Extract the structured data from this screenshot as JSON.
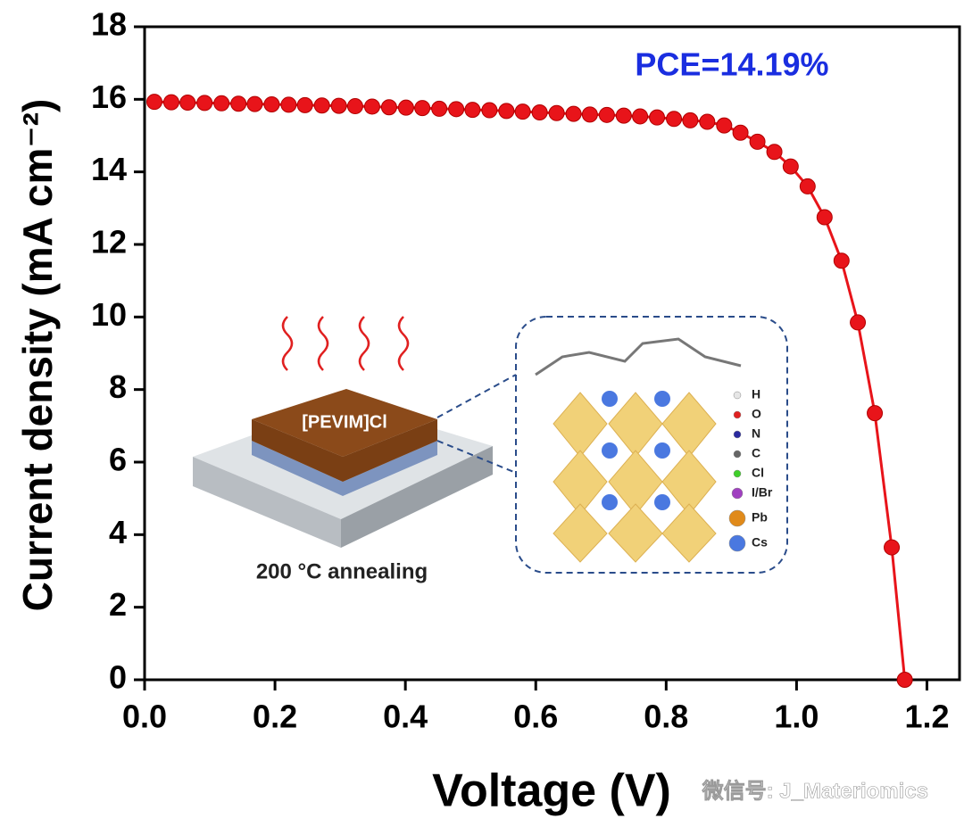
{
  "chart_data": {
    "type": "line",
    "annotation": "PCE=14.19%",
    "xlabel": "Voltage (V)",
    "ylabel": "Current density (mA cm⁻²)",
    "x": [
      0.015,
      0.041,
      0.066,
      0.092,
      0.118,
      0.144,
      0.169,
      0.195,
      0.221,
      0.246,
      0.272,
      0.298,
      0.323,
      0.349,
      0.375,
      0.401,
      0.426,
      0.452,
      0.478,
      0.503,
      0.529,
      0.555,
      0.58,
      0.606,
      0.632,
      0.658,
      0.683,
      0.709,
      0.735,
      0.76,
      0.786,
      0.812,
      0.837,
      0.863,
      0.889,
      0.914,
      0.94,
      0.966,
      0.991,
      1.017,
      1.043,
      1.069,
      1.094,
      1.12,
      1.146,
      1.166
    ],
    "series": [
      {
        "color": "#e8141a",
        "values": [
          15.93,
          15.92,
          15.91,
          15.9,
          15.89,
          15.88,
          15.87,
          15.86,
          15.85,
          15.84,
          15.83,
          15.82,
          15.81,
          15.8,
          15.78,
          15.77,
          15.76,
          15.74,
          15.73,
          15.71,
          15.7,
          15.68,
          15.66,
          15.64,
          15.62,
          15.6,
          15.58,
          15.57,
          15.55,
          15.53,
          15.5,
          15.46,
          15.42,
          15.38,
          15.28,
          15.08,
          14.83,
          14.55,
          14.15,
          13.6,
          12.75,
          11.55,
          9.85,
          7.35,
          3.65,
          0
        ]
      }
    ],
    "xlim": [
      0,
      1.25
    ],
    "ylim": [
      0,
      18
    ],
    "xticks": [
      {
        "value": 0,
        "label": "0.0"
      },
      0.2,
      0.4,
      0.6,
      0.8,
      {
        "value": 1,
        "label": "1.0"
      },
      1.2
    ],
    "yticks": [
      0,
      2,
      4,
      6,
      8,
      10,
      12,
      14,
      16,
      18
    ],
    "inset": {
      "film": "[PEVIM]Cl",
      "caption": "200 °C annealing",
      "legend": [
        {
          "label": "H",
          "color": "#e6e6e6"
        },
        {
          "label": "O",
          "color": "#e02020"
        },
        {
          "label": "N",
          "color": "#2a2aa0"
        },
        {
          "label": "C",
          "color": "#666666"
        },
        {
          "label": "Cl",
          "color": "#3fcf2a"
        },
        {
          "label": "I/Br",
          "color": "#a040c0"
        },
        {
          "label": "Pb",
          "color": "#e08a1a"
        },
        {
          "label": "Cs",
          "color": "#4a78e0"
        }
      ]
    },
    "watermark": "微信号: J_Materiomics"
  }
}
